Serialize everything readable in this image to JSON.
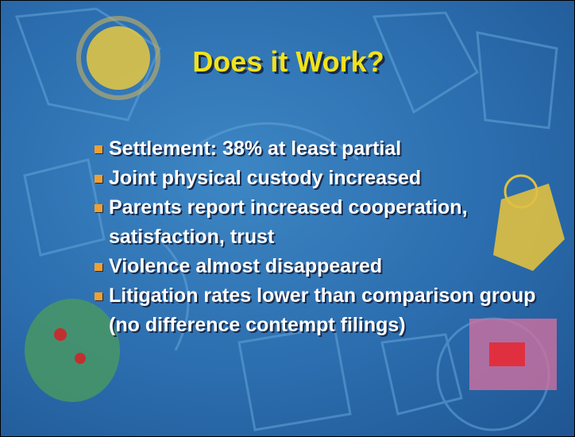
{
  "slide": {
    "title": "Does it Work?",
    "bullets": [
      "Settlement: 38% at least partial",
      "Joint physical custody increased",
      "Parents report increased cooperation, satisfaction, trust",
      "Violence almost disappeared",
      "Litigation rates lower than comparison group (no difference contempt filings)"
    ]
  }
}
